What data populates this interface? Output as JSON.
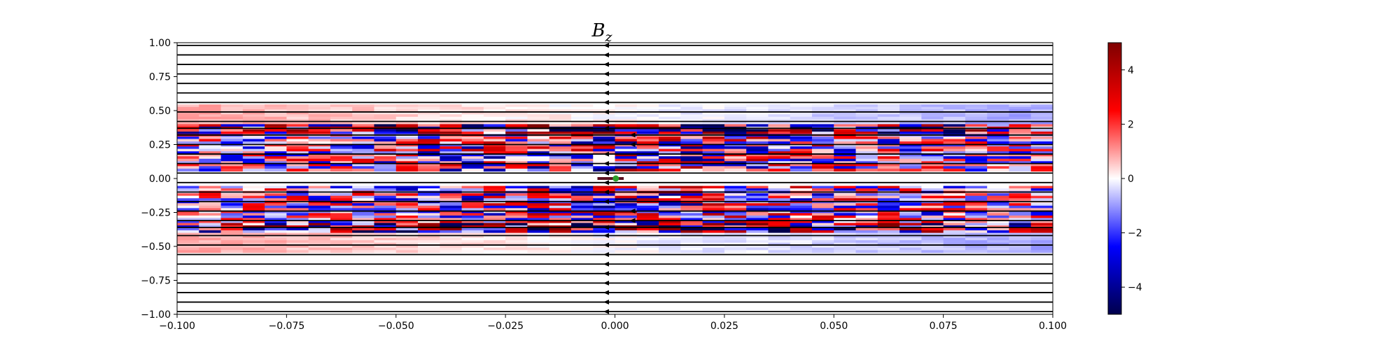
{
  "chart_data": {
    "type": "heatmap",
    "title": "B",
    "title_subscript": "z",
    "xlabel": "",
    "ylabel": "",
    "xlim": [
      -0.1,
      0.1
    ],
    "ylim": [
      -1.0,
      1.0
    ],
    "x_ticks": [
      -0.1,
      -0.075,
      -0.05,
      -0.025,
      0.0,
      0.025,
      0.05,
      0.075,
      0.1
    ],
    "x_tick_labels": [
      "−0.100",
      "−0.075",
      "−0.050",
      "−0.025",
      "0.000",
      "0.025",
      "0.050",
      "0.075",
      "0.100"
    ],
    "y_ticks": [
      1.0,
      0.75,
      0.5,
      0.25,
      0.0,
      -0.25,
      -0.5,
      -0.75,
      -1.0
    ],
    "y_tick_labels": [
      "1.00",
      "0.75",
      "0.50",
      "0.25",
      "0.00",
      "−0.25",
      "−0.50",
      "−0.75",
      "−1.00"
    ],
    "colormap": "seismic",
    "colorbar": {
      "range": [
        -5,
        5
      ],
      "ticks": [
        4,
        2,
        0,
        -2,
        -4
      ],
      "tick_labels": [
        "4",
        "2",
        "0",
        "−2",
        "−4"
      ],
      "colors": {
        "min": "#00004c",
        "low": "#0000ff",
        "mid": "#ffffff",
        "high": "#ff0000",
        "max": "#7f0000"
      }
    },
    "field_lines": {
      "color": "#000000",
      "direction": "negative-x",
      "y_values": [
        0.98,
        0.91,
        0.84,
        0.77,
        0.7,
        0.63,
        0.56,
        0.49,
        0.42,
        0.37,
        0.32,
        0.25,
        0.18,
        0.11,
        0.04,
        -0.03,
        -0.1,
        -0.17,
        -0.24,
        -0.31,
        -0.36,
        -0.42,
        -0.49,
        -0.56,
        -0.63,
        -0.7,
        -0.77,
        -0.84,
        -0.91,
        -0.98
      ],
      "arrow_x": -0.002,
      "bumped_arrows": [
        {
          "y": 0.32,
          "x": 0.004
        },
        {
          "y": 0.25,
          "x": 0.004
        },
        {
          "y": -0.24,
          "x": 0.004
        },
        {
          "y": -0.31,
          "x": 0.004
        }
      ]
    },
    "source": {
      "segment_x": [
        -0.004,
        0.002
      ],
      "segment_y": 0.0,
      "segment_color": "#5a1020",
      "point": [
        0.0002,
        0.0
      ],
      "point_color": "#2ca02c"
    },
    "field_bands": [
      {
        "y": [
          0.4,
          0.55
        ],
        "sign": -1,
        "amplitude": 0.4
      },
      {
        "y": [
          0.05,
          0.4
        ],
        "sign": 1,
        "amplitude": 1.0
      },
      {
        "y": [
          -0.05,
          0.05
        ],
        "sign": 0,
        "amplitude": 0.0
      },
      {
        "y": [
          -0.4,
          -0.05
        ],
        "sign": -1,
        "amplitude": 1.0
      },
      {
        "y": [
          -0.55,
          -0.4
        ],
        "sign": 1,
        "amplitude": 0.4
      }
    ]
  }
}
